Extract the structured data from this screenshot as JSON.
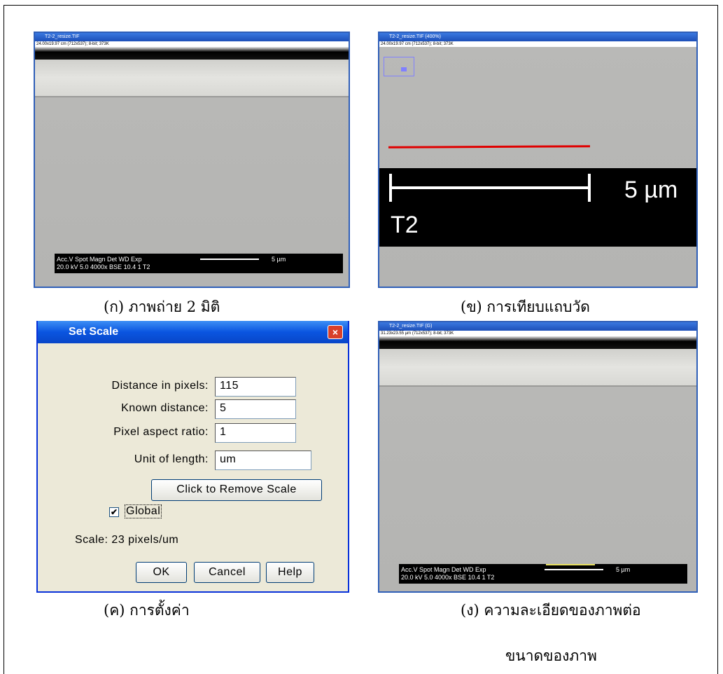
{
  "panels": [
    {
      "window_title": "T2-2_resize.TIF",
      "info": "24.00x19.97 cm (712x537); 8-bit; 373K",
      "sem_bar": [
        "Acc.V  Spot Magn   Det  WD  Exp",
        "20.0 kV 5.0  4000x   BSE 10.4  1      T2",
        "5 µm"
      ],
      "caption": "(ก)  ภาพถ่าย 2 มิติ"
    },
    {
      "window_title": "T2-2_resize.TIF (400%)",
      "info": "24.00x19.97 cm (712x537); 8-bit; 373K",
      "scale_label": "5 µm",
      "sample_label": "T2",
      "caption": "(ข)  การเทียบแถบวัด"
    },
    {
      "dialog": {
        "title": "Set Scale",
        "fields": [
          {
            "label": "Distance in pixels:",
            "value": "115"
          },
          {
            "label": "Known distance:",
            "value": "5"
          },
          {
            "label": "Pixel aspect ratio:",
            "value": "1"
          },
          {
            "label": "Unit of length:",
            "value": "um"
          }
        ],
        "remove_button": "Click to Remove Scale",
        "checkbox": "Global",
        "scale": "Scale: 23 pixels/um",
        "buttons": [
          "OK",
          "Cancel",
          "Help"
        ]
      },
      "caption": "(ค)  การตั้งค่า"
    },
    {
      "window_title": "T2-2_resize.TIF (G)",
      "info": "31.23x23.55 µm (712x537); 8-bit; 373K",
      "sem_bar": [
        "Acc.V  Spot Magn   Det  WD  Exp",
        "20.0 kV 5.0  4000x   BSE 10.4  1      T2",
        "5 µm"
      ],
      "caption": [
        "(ง)  ความละเอียดของภาพต่อ",
        "ขนาดของภาพ"
      ]
    }
  ]
}
